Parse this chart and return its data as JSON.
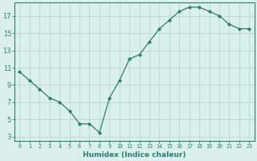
{
  "x": [
    0,
    1,
    2,
    3,
    4,
    5,
    6,
    7,
    8,
    9,
    10,
    11,
    12,
    13,
    14,
    15,
    16,
    17,
    18,
    19,
    20,
    21,
    22,
    23
  ],
  "y": [
    10.5,
    9.5,
    8.5,
    7.5,
    7.0,
    6.0,
    4.5,
    4.5,
    3.5,
    7.5,
    9.5,
    12.0,
    12.5,
    14.0,
    15.5,
    16.5,
    17.5,
    18.0,
    18.0,
    17.5,
    17.0,
    16.0,
    15.5,
    15.5
  ],
  "line_color": "#2e7d6e",
  "marker": "D",
  "marker_size": 2.2,
  "bg_color": "#d9f0ed",
  "grid_color": "#b8d8d4",
  "tick_color": "#2e7d6e",
  "spine_color": "#2e7d6e",
  "xlabel": "Humidex (Indice chaleur)",
  "xlim": [
    -0.5,
    23.5
  ],
  "ylim": [
    2.5,
    18.5
  ],
  "yticks": [
    3,
    5,
    7,
    9,
    11,
    13,
    15,
    17
  ],
  "xticks": [
    0,
    1,
    2,
    3,
    4,
    5,
    6,
    7,
    8,
    9,
    10,
    11,
    12,
    13,
    14,
    15,
    16,
    17,
    18,
    19,
    20,
    21,
    22,
    23
  ],
  "xtick_labels": [
    "0",
    "1",
    "2",
    "3",
    "4",
    "5",
    "6",
    "7",
    "8",
    "9",
    "10",
    "11",
    "12",
    "13",
    "14",
    "15",
    "16",
    "17",
    "18",
    "19",
    "20",
    "21",
    "22",
    "23"
  ],
  "xlabel_fontsize": 6.5,
  "ytick_fontsize": 6.0,
  "xtick_fontsize": 4.8
}
